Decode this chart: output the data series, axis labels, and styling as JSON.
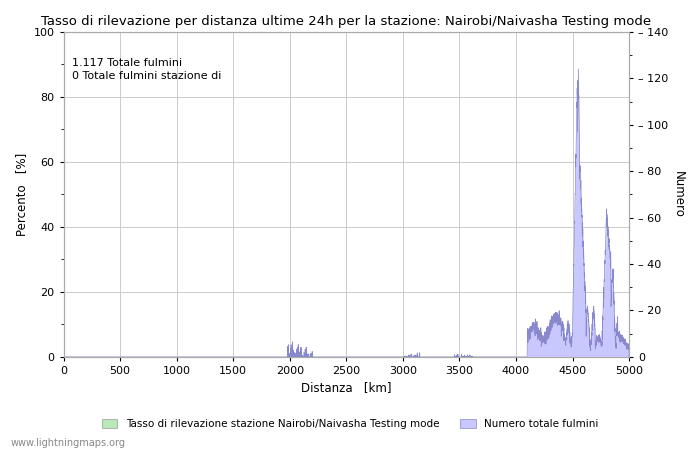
{
  "title": "Tasso di rilevazione per distanza ultime 24h per la stazione: Nairobi/Naivasha Testing mode",
  "xlabel": "Distanza   [km]",
  "ylabel_left": "Percento   [%]",
  "ylabel_right": "Numero",
  "annotation_line1": "1.117 Totale fulmini",
  "annotation_line2": "0 Totale fulmini stazione di",
  "xlim": [
    0,
    5000
  ],
  "ylim_left": [
    0,
    100
  ],
  "ylim_right": [
    0,
    140
  ],
  "xticks": [
    0,
    500,
    1000,
    1500,
    2000,
    2500,
    3000,
    3500,
    4000,
    4500,
    5000
  ],
  "yticks_left": [
    0,
    20,
    40,
    60,
    80,
    100
  ],
  "yticks_right": [
    0,
    20,
    40,
    60,
    80,
    100,
    120,
    140
  ],
  "bar_color": "#c8c8ff",
  "bar_edge_color": "#8888cc",
  "green_color": "#b8e8b8",
  "legend_label_bar": "Tasso di rilevazione stazione Nairobi/Naivasha Testing mode",
  "legend_label_blue": "Numero totale fulmini",
  "watermark": "www.lightningmaps.org",
  "background_color": "#ffffff",
  "grid_color": "#cccccc",
  "title_fontsize": 9.5,
  "label_fontsize": 8.5,
  "tick_fontsize": 8,
  "annotation_fontsize": 8
}
